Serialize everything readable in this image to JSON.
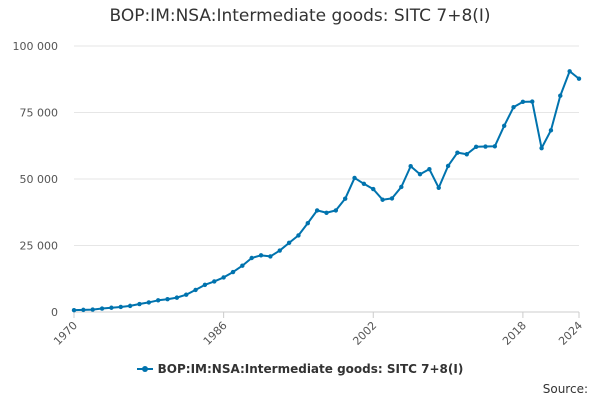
{
  "chart_data": {
    "type": "line",
    "title": "BOP:IM:NSA:Intermediate goods: SITC 7+8(I)",
    "xlabel": "",
    "ylabel": "",
    "xlim": [
      1970,
      2024
    ],
    "ylim": [
      0,
      100000
    ],
    "x_ticks": [
      1970,
      1986,
      2002,
      2018,
      2024
    ],
    "x_tick_labels": [
      "1970",
      "1986",
      "2002",
      "2018",
      "2024"
    ],
    "y_ticks": [
      0,
      25000,
      50000,
      75000,
      100000
    ],
    "y_tick_labels": [
      "0",
      "25 000",
      "50 000",
      "75 000",
      "100 000"
    ],
    "grid": "horizontal",
    "legend_position": "bottom-center",
    "color": "#0073ae",
    "series": [
      {
        "name": "BOP:IM:NSA:Intermediate goods: SITC 7+8(I)",
        "x": [
          1970,
          1971,
          1972,
          1973,
          1974,
          1975,
          1976,
          1977,
          1978,
          1979,
          1980,
          1981,
          1982,
          1983,
          1984,
          1985,
          1986,
          1987,
          1988,
          1989,
          1990,
          1991,
          1992,
          1993,
          1994,
          1995,
          1996,
          1997,
          1998,
          1999,
          2000,
          2001,
          2002,
          2003,
          2004,
          2005,
          2006,
          2007,
          2008,
          2009,
          2010,
          2011,
          2012,
          2013,
          2014,
          2015,
          2016,
          2017,
          2018,
          2019,
          2020,
          2021,
          2022,
          2023,
          2024
        ],
        "values": [
          700,
          800,
          900,
          1300,
          1600,
          1900,
          2300,
          3000,
          3600,
          4400,
          4800,
          5400,
          6500,
          8300,
          10200,
          11500,
          13000,
          15000,
          17400,
          20300,
          21300,
          20900,
          23100,
          26000,
          28800,
          33400,
          38200,
          37300,
          38200,
          42600,
          50400,
          48200,
          46200,
          42200,
          42700,
          47000,
          54800,
          51800,
          53700,
          46700,
          54900,
          59900,
          59300,
          62100,
          62200,
          62300,
          70000,
          77000,
          79000,
          79100,
          61600,
          68300,
          81300,
          90500,
          87700
        ]
      }
    ]
  },
  "legend": {
    "label": "BOP:IM:NSA:Intermediate goods: SITC 7+8(I)"
  },
  "source_label": "Source:"
}
